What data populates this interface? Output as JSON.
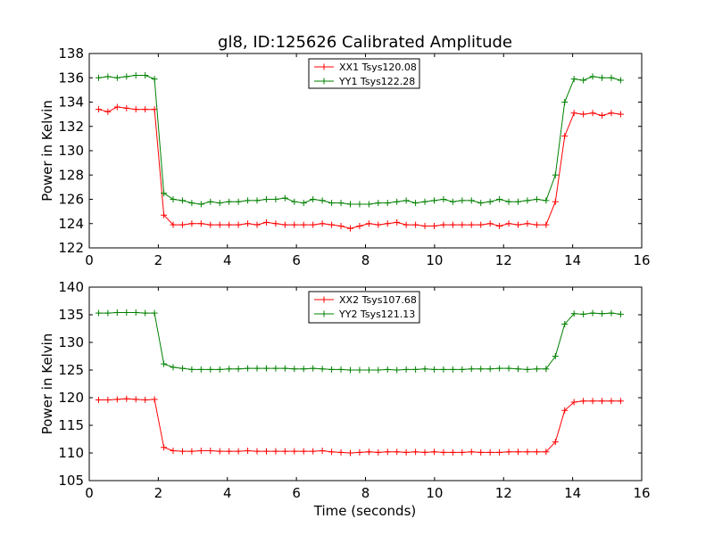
{
  "title": "gl8, ID:125626 Calibrated Amplitude",
  "xlabel": "Time (seconds)",
  "chart_data": [
    {
      "type": "line",
      "title": "gl8, ID:125626 Calibrated Amplitude",
      "xlabel": "",
      "ylabel": "Power in Kelvin",
      "xlim": [
        0,
        16
      ],
      "ylim": [
        122,
        138
      ],
      "xticks": [
        "0",
        "2",
        "4",
        "6",
        "8",
        "10",
        "12",
        "14",
        "16"
      ],
      "yticks": [
        "122",
        "124",
        "126",
        "128",
        "130",
        "132",
        "134",
        "136",
        "138"
      ],
      "grid": false,
      "legend_position": "top-center",
      "x": [
        0.27,
        0.54,
        0.81,
        1.08,
        1.35,
        1.62,
        1.89,
        2.16,
        2.43,
        2.7,
        2.97,
        3.24,
        3.51,
        3.78,
        4.05,
        4.32,
        4.59,
        4.86,
        5.13,
        5.4,
        5.67,
        5.94,
        6.21,
        6.48,
        6.75,
        7.02,
        7.29,
        7.56,
        7.83,
        8.1,
        8.37,
        8.64,
        8.91,
        9.18,
        9.45,
        9.72,
        9.99,
        10.26,
        10.53,
        10.8,
        11.07,
        11.34,
        11.61,
        11.88,
        12.15,
        12.42,
        12.69,
        12.96,
        13.23,
        13.5,
        13.77,
        14.04,
        14.31,
        14.58,
        14.85,
        15.12,
        15.39
      ],
      "series": [
        {
          "name": "XX1 Tsys120.08",
          "color": "#ff0000",
          "values": [
            133.4,
            133.2,
            133.6,
            133.5,
            133.4,
            133.4,
            133.4,
            124.7,
            123.9,
            123.9,
            124.0,
            124.0,
            123.9,
            123.9,
            123.9,
            123.9,
            124.0,
            123.9,
            124.1,
            124.0,
            123.9,
            123.9,
            123.9,
            123.9,
            124.0,
            123.9,
            123.8,
            123.6,
            123.8,
            124.0,
            123.9,
            124.0,
            124.1,
            123.9,
            123.9,
            123.8,
            123.8,
            123.9,
            123.9,
            123.9,
            123.9,
            123.9,
            124.0,
            123.8,
            124.0,
            123.9,
            124.0,
            123.9,
            123.9,
            125.8,
            131.2,
            133.1,
            133.0,
            133.1,
            132.9,
            133.1,
            133.0
          ]
        },
        {
          "name": "YY1 Tsys122.28",
          "color": "#008000",
          "values": [
            136.0,
            136.1,
            136.0,
            136.1,
            136.2,
            136.2,
            135.9,
            126.5,
            126.0,
            125.9,
            125.7,
            125.6,
            125.8,
            125.7,
            125.8,
            125.8,
            125.9,
            125.9,
            126.0,
            126.0,
            126.1,
            125.8,
            125.7,
            126.0,
            125.9,
            125.7,
            125.7,
            125.6,
            125.6,
            125.6,
            125.7,
            125.7,
            125.8,
            125.9,
            125.7,
            125.8,
            125.9,
            126.0,
            125.8,
            125.9,
            125.9,
            125.7,
            125.8,
            126.0,
            125.8,
            125.8,
            125.9,
            126.0,
            125.9,
            128.0,
            134.0,
            135.9,
            135.8,
            136.1,
            136.0,
            136.0,
            135.8
          ]
        }
      ]
    },
    {
      "type": "line",
      "title": "",
      "xlabel": "Time (seconds)",
      "ylabel": "Power in Kelvin",
      "xlim": [
        0,
        16
      ],
      "ylim": [
        105,
        140
      ],
      "xticks": [
        "0",
        "2",
        "4",
        "6",
        "8",
        "10",
        "12",
        "14",
        "16"
      ],
      "yticks": [
        "105",
        "110",
        "115",
        "120",
        "125",
        "130",
        "135",
        "140"
      ],
      "grid": false,
      "legend_position": "top-center",
      "x": [
        0.27,
        0.54,
        0.81,
        1.08,
        1.35,
        1.62,
        1.89,
        2.16,
        2.43,
        2.7,
        2.97,
        3.24,
        3.51,
        3.78,
        4.05,
        4.32,
        4.59,
        4.86,
        5.13,
        5.4,
        5.67,
        5.94,
        6.21,
        6.48,
        6.75,
        7.02,
        7.29,
        7.56,
        7.83,
        8.1,
        8.37,
        8.64,
        8.91,
        9.18,
        9.45,
        9.72,
        9.99,
        10.26,
        10.53,
        10.8,
        11.07,
        11.34,
        11.61,
        11.88,
        12.15,
        12.42,
        12.69,
        12.96,
        13.23,
        13.5,
        13.77,
        14.04,
        14.31,
        14.58,
        14.85,
        15.12,
        15.39
      ],
      "series": [
        {
          "name": "XX2 Tsys107.68",
          "color": "#ff0000",
          "values": [
            119.6,
            119.6,
            119.7,
            119.8,
            119.7,
            119.6,
            119.7,
            111.0,
            110.4,
            110.3,
            110.3,
            110.4,
            110.4,
            110.3,
            110.3,
            110.3,
            110.4,
            110.3,
            110.3,
            110.3,
            110.3,
            110.3,
            110.3,
            110.3,
            110.4,
            110.2,
            110.1,
            110.0,
            110.1,
            110.2,
            110.1,
            110.2,
            110.2,
            110.1,
            110.2,
            110.1,
            110.2,
            110.1,
            110.1,
            110.1,
            110.2,
            110.1,
            110.1,
            110.1,
            110.2,
            110.2,
            110.2,
            110.2,
            110.2,
            112.0,
            117.7,
            119.2,
            119.4,
            119.4,
            119.4,
            119.4,
            119.4
          ]
        },
        {
          "name": "YY2 Tsys121.13",
          "color": "#008000",
          "values": [
            135.3,
            135.3,
            135.4,
            135.4,
            135.4,
            135.3,
            135.3,
            126.1,
            125.5,
            125.3,
            125.1,
            125.1,
            125.1,
            125.1,
            125.2,
            125.2,
            125.3,
            125.3,
            125.3,
            125.3,
            125.3,
            125.2,
            125.2,
            125.3,
            125.2,
            125.1,
            125.1,
            125.0,
            125.0,
            125.0,
            125.0,
            125.1,
            125.0,
            125.1,
            125.1,
            125.2,
            125.1,
            125.1,
            125.1,
            125.1,
            125.2,
            125.2,
            125.2,
            125.3,
            125.3,
            125.2,
            125.1,
            125.2,
            125.2,
            127.5,
            133.3,
            135.2,
            135.1,
            135.3,
            135.2,
            135.3,
            135.1
          ]
        }
      ]
    }
  ]
}
